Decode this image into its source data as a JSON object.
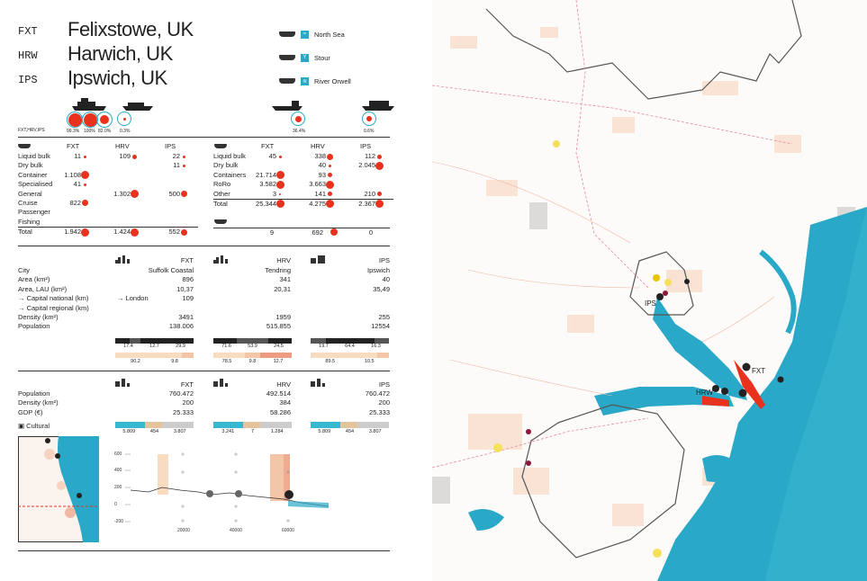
{
  "ports": [
    {
      "code": "FXT",
      "name": "Felixstowe, UK"
    },
    {
      "code": "HRW",
      "name": "Harwich, UK"
    },
    {
      "code": "IPS",
      "name": "Ipswich, UK"
    }
  ],
  "waters": [
    {
      "label": "North Sea"
    },
    {
      "label": "Stour"
    },
    {
      "label": "River Orwell"
    }
  ],
  "traffic_rings": {
    "caption": "FXT,HRV,IPS",
    "left_pcts": [
      "99.3%",
      "100%",
      "82.0%",
      "0.3%"
    ],
    "right_pcts": [
      "36.4%",
      "0.6%"
    ]
  },
  "freight": {
    "headers": [
      "FXT",
      "HRV",
      "IPS"
    ],
    "rows": [
      {
        "label": "Liquid bulk",
        "fxt": "11",
        "hrv": "109",
        "ips": "22"
      },
      {
        "label": "Dry bulk",
        "fxt": "",
        "hrv": "",
        "ips": "11"
      },
      {
        "label": "Container",
        "fxt": "1.108",
        "hrv": "",
        "ips": ""
      },
      {
        "label": "Specialised",
        "fxt": "41",
        "hrv": "",
        "ips": ""
      },
      {
        "label": "General",
        "fxt": "",
        "hrv": "1.302",
        "ips": "500"
      },
      {
        "label": "Cruise",
        "fxt": "822",
        "hrv": "",
        "ips": ""
      },
      {
        "label": "Passenger",
        "fxt": "",
        "hrv": "",
        "ips": ""
      },
      {
        "label": "Fishing",
        "fxt": "",
        "hrv": "",
        "ips": ""
      },
      {
        "label": "Total",
        "fxt": "1.942",
        "hrv": "1.424",
        "ips": "552"
      }
    ]
  },
  "vessels": {
    "headers": [
      "FXT",
      "HRV",
      "IPS"
    ],
    "rows": [
      {
        "label": "Liquid bulk",
        "fxt": "45",
        "hrv": "338",
        "ips": "112"
      },
      {
        "label": "Dry bulk",
        "fxt": "",
        "hrv": "40",
        "ips": "2.045"
      },
      {
        "label": "Containers",
        "fxt": "21.714",
        "hrv": "93",
        "ips": ""
      },
      {
        "label": "RoRo",
        "fxt": "3.582",
        "hrv": "3.663",
        "ips": ""
      },
      {
        "label": "Other",
        "fxt": "3",
        "hrv": "141",
        "ips": "210"
      },
      {
        "label": "Total",
        "fxt": "25.344",
        "hrv": "4.275",
        "ips": "2.367"
      }
    ],
    "passenger_total": {
      "fxt": "9",
      "hrv": "692",
      "ips": "0"
    }
  },
  "city": {
    "labels": [
      "City",
      "Area (km²)",
      "Area, LAU (km²)",
      "→ Capital national (km)",
      "→ Capital regional (km)",
      "Density (km²)",
      "Population"
    ],
    "fxt": {
      "head": "FXT",
      "city": "Suffolk Coastal",
      "area": "896",
      "area_lau": "10,37",
      "cap_nat": "109",
      "cap_nat_ref": "→ London",
      "density": "3491",
      "population": "138.006"
    },
    "hrv": {
      "head": "HRV",
      "city": "Tendring",
      "area": "341",
      "area_lau": "20,31",
      "density": "1959",
      "population": "515.855"
    },
    "ips": {
      "head": "IPS",
      "city": "Ipswich",
      "area": "40",
      "area_lau": "35,49",
      "density": "255",
      "population": "12554"
    }
  },
  "bars": {
    "fxt_top": [
      "17.4",
      "12.7",
      "29.9"
    ],
    "fxt_bot": [
      "90.2",
      "9.8"
    ],
    "hrv_top": [
      "71.6",
      "53.9",
      "24.5"
    ],
    "hrv_bot": [
      "78.5",
      "9.8",
      "12.7"
    ],
    "ips_top": [
      "19.7",
      "64.4",
      "16.3"
    ],
    "ips_bot": [
      "89.5",
      "10.5"
    ]
  },
  "region": {
    "labels": [
      "Population",
      "Density (km²)",
      "GDP (€)"
    ],
    "fxt": {
      "head": "FXT",
      "population": "760.472",
      "density": "200",
      "gdp": "25.333"
    },
    "hrv": {
      "head": "HRV",
      "population": "492.514",
      "density": "384",
      "gdp": "58.286"
    },
    "ips": {
      "head": "IPS",
      "population": "760.472",
      "density": "200",
      "gdp": "25.333"
    },
    "cultural": "Cultural"
  },
  "nuts": {
    "fxt": [
      "5.809",
      "454",
      "3.807"
    ],
    "hrv": [
      "3.241",
      "7",
      "1.284"
    ],
    "ips": [
      "5.809",
      "454",
      "3.807"
    ]
  },
  "profile": {
    "y_ticks": [
      "600",
      "400",
      "200",
      "0",
      "-200"
    ],
    "x_ticks": [
      "20000",
      "40000",
      "60000"
    ]
  },
  "map_labels": {
    "ips": "IPS",
    "fxt": "FXT",
    "hrw": "HRW"
  },
  "colors": {
    "red": "#e8321e",
    "sea": "#2aa8c8",
    "peach": "#f6d9c2"
  }
}
